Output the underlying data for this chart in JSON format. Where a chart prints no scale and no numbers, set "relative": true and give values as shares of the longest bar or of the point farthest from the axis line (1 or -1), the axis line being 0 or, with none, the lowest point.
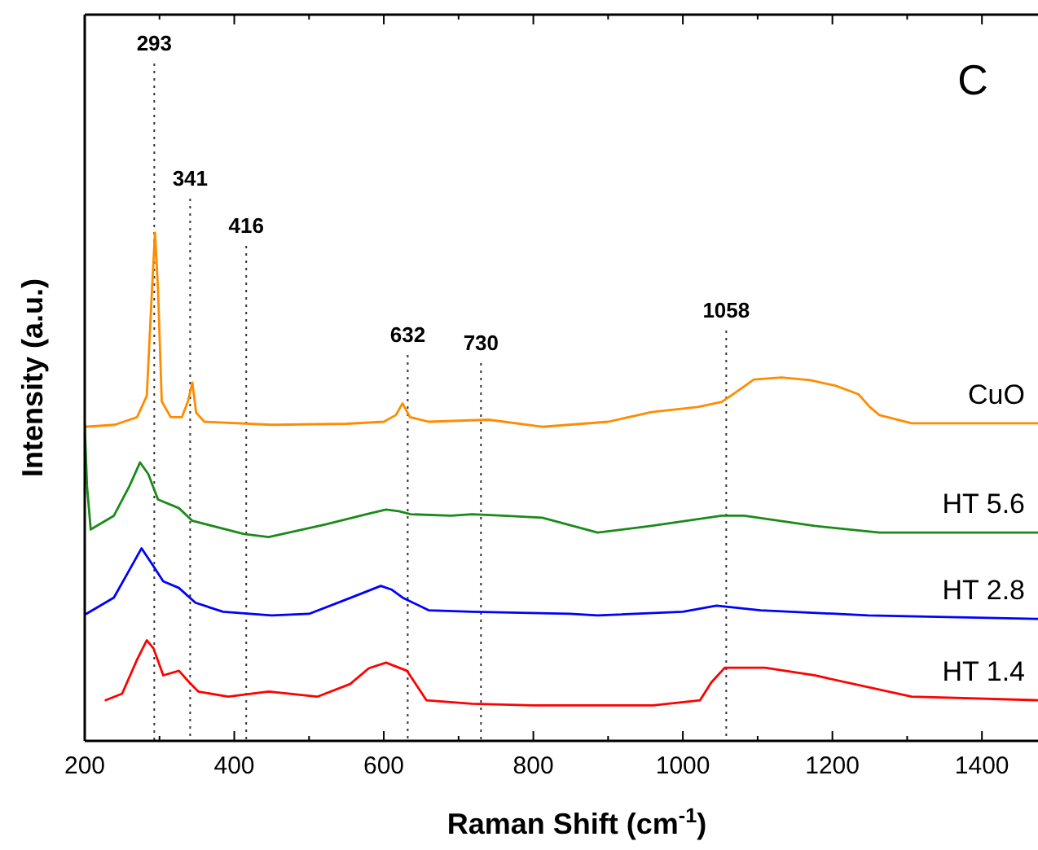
{
  "chart_data": {
    "type": "line",
    "relative": true,
    "xlabel": "Raman Shift (cm$^{-1}$)",
    "ylabel": "Intensity (a.u.)",
    "xlim": [
      200,
      1475
    ],
    "xticks": [
      200,
      400,
      600,
      800,
      1000,
      1200,
      1400
    ],
    "tick_labels": "x",
    "grid": false,
    "legend": false,
    "line_style": "solid",
    "marker": "none",
    "annotations": [
      "C"
    ],
    "ref_lines": [
      {
        "axis": "x",
        "value": 293,
        "label": "293",
        "line_style": "dotted",
        "color": "#333333"
      },
      {
        "axis": "x",
        "value": 341,
        "label": "341",
        "line_style": "dotted",
        "color": "#333333"
      },
      {
        "axis": "x",
        "value": 416,
        "label": "416",
        "line_style": "dotted",
        "color": "#333333"
      },
      {
        "axis": "x",
        "value": 632,
        "label": "632",
        "line_style": "dotted",
        "color": "#333333"
      },
      {
        "axis": "x",
        "value": 730,
        "label": "730",
        "line_style": "dotted",
        "color": "#333333"
      },
      {
        "axis": "x",
        "value": 1058,
        "label": "1058",
        "line_style": "dotted",
        "color": "#333333"
      }
    ],
    "series": [
      {
        "name": "CuO",
        "color": "#ff8c00",
        "x": [
          200,
          240,
          270,
          283,
          290,
          294,
          298,
          303,
          315,
          330,
          338,
          344,
          349,
          360,
          450,
          550,
          600,
          616,
          625,
          635,
          660,
          740,
          812,
          900,
          958,
          1020,
          1052,
          1070,
          1095,
          1132,
          1170,
          1204,
          1235,
          1250,
          1263,
          1306,
          1475
        ],
        "values": [
          0.618,
          0.622,
          0.637,
          0.679,
          0.889,
          1,
          0.889,
          0.668,
          0.637,
          0.637,
          0.668,
          0.705,
          0.646,
          0.628,
          0.622,
          0.624,
          0.628,
          0.641,
          0.664,
          0.637,
          0.628,
          0.632,
          0.618,
          0.628,
          0.647,
          0.657,
          0.667,
          0.685,
          0.711,
          0.715,
          0.71,
          0.699,
          0.682,
          0.657,
          0.641,
          0.625,
          0.625
        ]
      },
      {
        "name": "HT 5.6",
        "color": "#1a8a1a",
        "x": [
          200,
          203,
          208,
          239,
          260,
          274,
          285,
          298,
          326,
          344,
          413,
          446,
          522,
          580,
          603,
          620,
          636,
          690,
          718,
          760,
          812,
          886,
          958,
          1052,
          1082,
          1176,
          1263,
          1475
        ],
        "values": [
          0.624,
          0.502,
          0.416,
          0.443,
          0.502,
          0.548,
          0.525,
          0.475,
          0.458,
          0.433,
          0.407,
          0.401,
          0.426,
          0.447,
          0.455,
          0.452,
          0.446,
          0.443,
          0.446,
          0.443,
          0.439,
          0.41,
          0.423,
          0.443,
          0.443,
          0.423,
          0.41,
          0.41
        ]
      },
      {
        "name": "HT 2.8",
        "color": "#0000ff",
        "x": [
          202,
          239,
          260,
          276,
          290,
          305,
          326,
          348,
          385,
          450,
          500,
          551,
          596,
          610,
          625,
          660,
          718,
          849,
          886,
          1000,
          1045,
          1104,
          1248,
          1475
        ],
        "values": [
          0.25,
          0.282,
          0.337,
          0.379,
          0.348,
          0.314,
          0.301,
          0.272,
          0.254,
          0.247,
          0.25,
          0.279,
          0.305,
          0.298,
          0.282,
          0.257,
          0.254,
          0.25,
          0.247,
          0.254,
          0.266,
          0.257,
          0.247,
          0.24
        ]
      },
      {
        "name": "HT 1.4",
        "color": "#ff0000",
        "x": [
          228,
          250,
          270,
          283,
          292,
          305,
          326,
          340,
          352,
          392,
          446,
          511,
          555,
          580,
          603,
          631,
          657,
          718,
          800,
          960,
          1023,
          1038,
          1056,
          1110,
          1176,
          1306,
          1475
        ],
        "values": [
          0.08,
          0.093,
          0.16,
          0.198,
          0.182,
          0.129,
          0.138,
          0.115,
          0.097,
          0.087,
          0.097,
          0.087,
          0.112,
          0.143,
          0.154,
          0.138,
          0.08,
          0.073,
          0.07,
          0.07,
          0.08,
          0.115,
          0.144,
          0.144,
          0.129,
          0.087,
          0.08
        ]
      }
    ]
  }
}
